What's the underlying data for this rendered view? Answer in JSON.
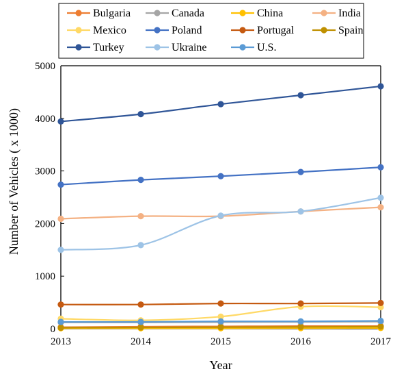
{
  "chart_data": {
    "type": "line",
    "title": "",
    "xlabel": "Year",
    "ylabel": "Number of Vehicles ( x 1000)",
    "x": [
      2013,
      2014,
      2015,
      2016,
      2017
    ],
    "xlim": [
      2013,
      2017
    ],
    "ylim": [
      0,
      5000
    ],
    "y_ticks": [
      0,
      1000,
      2000,
      3000,
      4000,
      5000
    ],
    "grid": false,
    "legend_position": "top",
    "smooth": true,
    "series": [
      {
        "name": "Bulgaria",
        "color": "#ED7D31",
        "values": [
          30,
          40,
          45,
          50,
          50
        ]
      },
      {
        "name": "Canada",
        "color": "#A5A5A5",
        "values": [
          120,
          120,
          125,
          130,
          135
        ]
      },
      {
        "name": "China",
        "color": "#FFC000",
        "values": [
          10,
          10,
          10,
          12,
          15
        ]
      },
      {
        "name": "India",
        "color": "#F4B183",
        "values": [
          2090,
          2140,
          2140,
          2230,
          2310
        ]
      },
      {
        "name": "Mexico",
        "color": "#FFD966",
        "values": [
          190,
          160,
          230,
          420,
          410
        ]
      },
      {
        "name": "Poland",
        "color": "#4472C4",
        "values": [
          2740,
          2830,
          2900,
          2980,
          3070
        ]
      },
      {
        "name": "Portugal",
        "color": "#C55A11",
        "values": [
          460,
          460,
          480,
          480,
          490
        ]
      },
      {
        "name": "Spain",
        "color": "#BF9000",
        "values": [
          20,
          25,
          30,
          35,
          40
        ]
      },
      {
        "name": "Turkey",
        "color": "#2F5597",
        "values": [
          3940,
          4080,
          4270,
          4440,
          4610
        ]
      },
      {
        "name": "Ukraine",
        "color": "#9DC3E6",
        "values": [
          1500,
          1590,
          2150,
          2230,
          2490
        ]
      },
      {
        "name": "U.S.",
        "color": "#5B9BD5",
        "values": [
          130,
          130,
          140,
          140,
          150
        ]
      }
    ]
  }
}
